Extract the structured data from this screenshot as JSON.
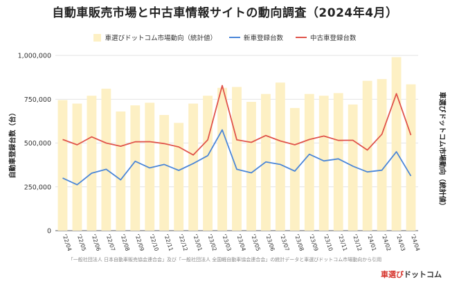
{
  "title": "自動車販売市場と中古車情報サイトの動向調査（2024年4月）",
  "ylabel_left": "自動車登録台数（台）",
  "ylabel_right": "車選びドットコム市場動向（統計値）",
  "source": "「一般社団法人 日本自動車販売協会連合会」及び「一般社団法人 全国軽自動車協会連合会」の統計データと車選びドットコム市場動向から引用",
  "logo": {
    "brand_red": "車選び",
    "brand_black": "ドットコム"
  },
  "colors": {
    "bar": "#fdf0c4",
    "new_car": "#4a86d8",
    "used_car": "#e0534a"
  },
  "chart_data": {
    "type": "bar",
    "categories": [
      "'22/04",
      "'22/05",
      "'22/06",
      "'22/07",
      "'22/08",
      "'22/09",
      "'22/10",
      "'22/11",
      "'22/12",
      "'23/01",
      "'23/02",
      "'23/03",
      "'23/04",
      "'23/05",
      "'23/06",
      "'23/07",
      "'23/08",
      "'23/09",
      "'23/10",
      "'23/11",
      "'23/12",
      "'24/01",
      "'24/02",
      "'24/03",
      "'24/04"
    ],
    "ylim": [
      0,
      1000000
    ],
    "yticks": [
      "0",
      "250,000",
      "500,000",
      "750,000",
      "1,000,000"
    ],
    "grid": true,
    "legend_position": "top",
    "series": [
      {
        "name": "車選びドットコム市場動向（統計値）",
        "kind": "bar",
        "values": [
          745000,
          725000,
          770000,
          810000,
          680000,
          715000,
          730000,
          660000,
          615000,
          725000,
          770000,
          815000,
          820000,
          735000,
          780000,
          845000,
          700000,
          780000,
          770000,
          785000,
          720000,
          855000,
          865000,
          990000,
          835000
        ]
      },
      {
        "name": "新車登録台数",
        "kind": "line",
        "values": [
          300000,
          262000,
          328000,
          350000,
          290000,
          396000,
          358000,
          378000,
          344000,
          383000,
          428000,
          575000,
          350000,
          330000,
          392000,
          378000,
          340000,
          436000,
          398000,
          410000,
          368000,
          335000,
          345000,
          450000,
          312000
        ]
      },
      {
        "name": "中古車登録台数",
        "kind": "line",
        "values": [
          520000,
          490000,
          535000,
          500000,
          482000,
          507000,
          508000,
          497000,
          478000,
          432000,
          518000,
          828000,
          518000,
          504000,
          543000,
          512000,
          490000,
          520000,
          540000,
          515000,
          516000,
          460000,
          550000,
          782000,
          545000
        ]
      }
    ]
  }
}
